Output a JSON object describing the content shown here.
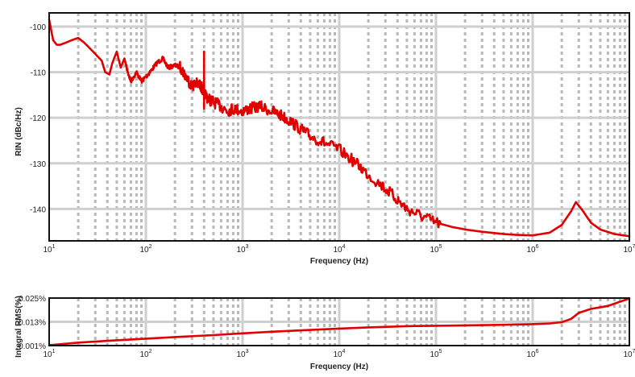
{
  "chart_data": [
    {
      "type": "line",
      "title": "",
      "xlabel": "Frequency (Hz)",
      "ylabel": "RIN (dBc/Hz)",
      "xscale": "log",
      "xlim": [
        10,
        10000000
      ],
      "ylim": [
        -147,
        -97
      ],
      "grid": true,
      "legend": "none",
      "color": "#e00000",
      "x_ticks": [
        {
          "base": "10",
          "exp": "1"
        },
        {
          "base": "10",
          "exp": "2"
        },
        {
          "base": "10",
          "exp": "3"
        },
        {
          "base": "10",
          "exp": "4"
        },
        {
          "base": "10",
          "exp": "5"
        },
        {
          "base": "10",
          "exp": "6"
        },
        {
          "base": "10",
          "exp": "7"
        }
      ],
      "y_ticks": [
        "-100",
        "-110",
        "-120",
        "-130",
        "-140"
      ],
      "y_tick_values": [
        -100,
        -110,
        -120,
        -130,
        -140
      ],
      "series": [
        {
          "x": [
            10,
            11,
            12,
            13,
            15,
            17,
            20,
            23,
            27,
            30,
            35,
            38,
            42,
            45,
            50,
            55,
            60,
            65,
            70,
            80,
            90,
            100,
            110,
            130,
            150,
            170,
            200,
            230,
            260,
            300,
            330,
            370,
            400,
            450,
            500,
            600,
            700,
            800,
            1000,
            1200,
            1500,
            2000,
            2500,
            3000,
            4000,
            5000,
            7000,
            10000,
            15000,
            20000,
            30000,
            40000,
            50000,
            70000,
            100000,
            150000,
            200000,
            300000,
            500000,
            700000,
            1000000,
            1500000,
            2000000,
            2500000,
            2800000,
            3200000,
            4000000,
            5000000,
            7000000,
            10000000
          ],
          "y": [
            -98.5,
            -103,
            -104,
            -104,
            -103.5,
            -103,
            -102.5,
            -103.5,
            -105,
            -106,
            -107.5,
            -110,
            -110.5,
            -108,
            -105.5,
            -109,
            -107,
            -110,
            -112,
            -110,
            -112,
            -111,
            -110,
            -108,
            -107,
            -109,
            -108.5,
            -109,
            -111,
            -113,
            -112.5,
            -113,
            -114.5,
            -116,
            -116.5,
            -117.5,
            -118.5,
            -118,
            -118.5,
            -118,
            -117.5,
            -118.5,
            -119.5,
            -120.5,
            -122.5,
            -124,
            -125.5,
            -127,
            -130,
            -132.5,
            -135.5,
            -138,
            -140,
            -141.5,
            -143,
            -144,
            -144.5,
            -145,
            -145.5,
            -145.7,
            -145.8,
            -145.2,
            -143.5,
            -140.5,
            -138.5,
            -140,
            -143,
            -144.5,
            -145.5,
            -146
          ]
        }
      ]
    },
    {
      "type": "line",
      "title": "",
      "xlabel": "Frequency (Hz)",
      "ylabel": "Integral RMS(%)",
      "xscale": "log",
      "xlim": [
        10,
        10000000
      ],
      "ylim": [
        0.001,
        0.025
      ],
      "grid": true,
      "legend": "none",
      "color": "#e00000",
      "x_ticks": [
        {
          "base": "10",
          "exp": "1"
        },
        {
          "base": "10",
          "exp": "2"
        },
        {
          "base": "10",
          "exp": "3"
        },
        {
          "base": "10",
          "exp": "4"
        },
        {
          "base": "10",
          "exp": "5"
        },
        {
          "base": "10",
          "exp": "6"
        },
        {
          "base": "10",
          "exp": "7"
        }
      ],
      "y_ticks": [
        "0.001%",
        "0.013%",
        "0.025%"
      ],
      "y_tick_values": [
        0.001,
        0.013,
        0.025
      ],
      "series": [
        {
          "x": [
            10,
            20,
            50,
            100,
            200,
            500,
            1000,
            2000,
            5000,
            10000,
            20000,
            50000,
            100000,
            200000,
            500000,
            1000000,
            1500000,
            2000000,
            2500000,
            3000000,
            4000000,
            6000000,
            10000000
          ],
          "y": [
            0.0012,
            0.0025,
            0.0037,
            0.0045,
            0.0053,
            0.0063,
            0.0072,
            0.008,
            0.0089,
            0.0096,
            0.0102,
            0.0108,
            0.011,
            0.0112,
            0.0115,
            0.0118,
            0.0122,
            0.0128,
            0.0145,
            0.0175,
            0.0195,
            0.021,
            0.0248
          ]
        }
      ]
    }
  ]
}
